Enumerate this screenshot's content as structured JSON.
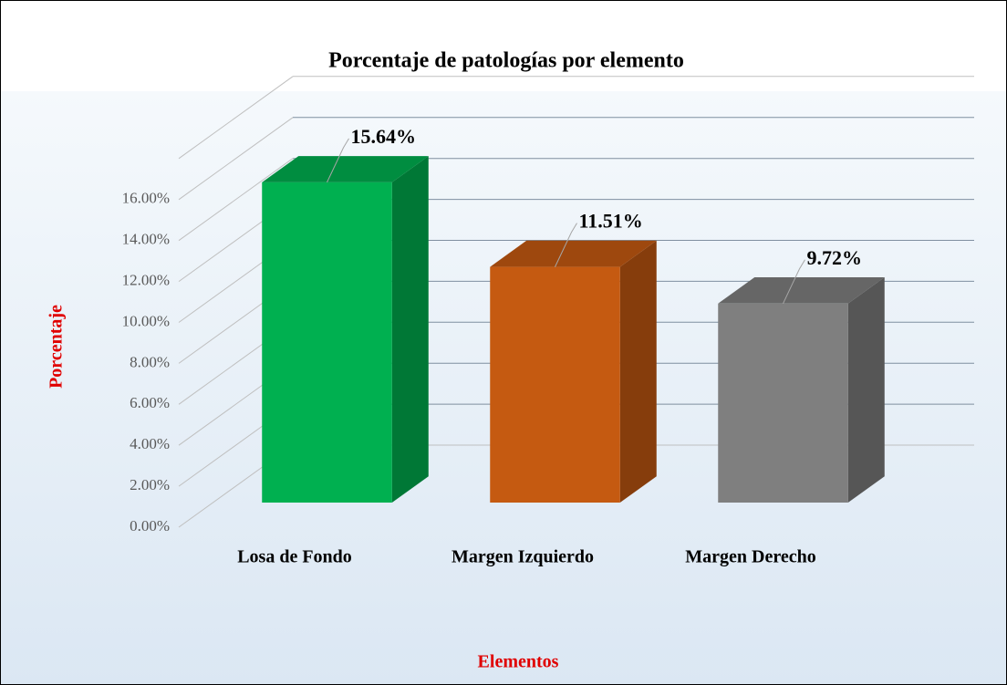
{
  "chart_data": {
    "type": "bar3d",
    "title": "Porcentaje de patologías por elemento",
    "xlabel": "Elementos",
    "ylabel": "Porcentaje",
    "categories": [
      "Losa de Fondo",
      "Margen Izquierdo",
      "Margen Derecho"
    ],
    "values": [
      15.64,
      11.51,
      9.72
    ],
    "value_labels": [
      "15.64%",
      "11.51%",
      "9.72%"
    ],
    "colors": [
      "#00b050",
      "#c55a11",
      "#7f7f7f"
    ],
    "ylim": [
      0,
      16
    ],
    "yticks": [
      {
        "value": 0,
        "label": "0.00%"
      },
      {
        "value": 2,
        "label": "2.00%"
      },
      {
        "value": 4,
        "label": "4.00%"
      },
      {
        "value": 6,
        "label": "6.00%"
      },
      {
        "value": 8,
        "label": "8.00%"
      },
      {
        "value": 10,
        "label": "10.00%"
      },
      {
        "value": 12,
        "label": "12.00%"
      },
      {
        "value": 14,
        "label": "14.00%"
      },
      {
        "value": 16,
        "label": "16.00%"
      }
    ],
    "grid": true
  }
}
